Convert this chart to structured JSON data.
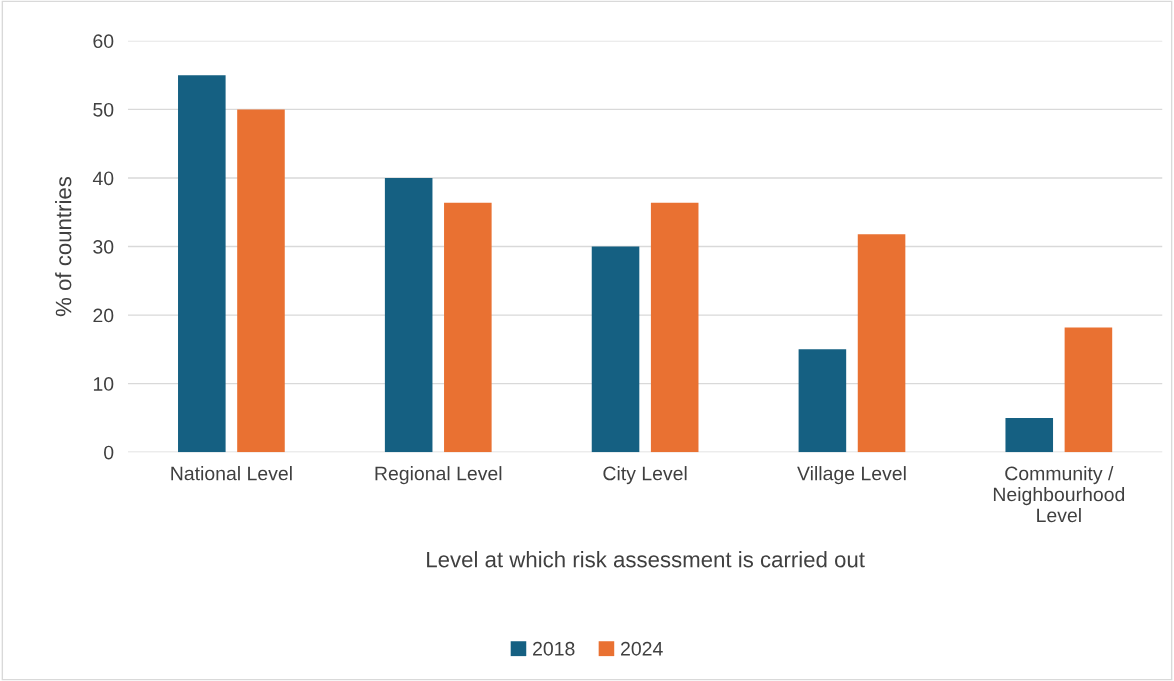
{
  "chart_data": {
    "type": "bar",
    "categories": [
      "National Level",
      "Regional Level",
      "City Level",
      "Village Level",
      "Community /\nNeighbourhood\nLevel"
    ],
    "series": [
      {
        "name": "2018",
        "color": "#156082",
        "values": [
          55,
          40,
          30,
          15,
          5
        ]
      },
      {
        "name": "2024",
        "color": "#e97132",
        "values": [
          50,
          36.4,
          36.4,
          31.8,
          18.2
        ]
      }
    ],
    "xlabel": "Level at which risk assessment is carried out",
    "ylabel": "% of countries",
    "ylim": [
      0,
      60
    ],
    "yticks": [
      0,
      10,
      20,
      30,
      40,
      50,
      60
    ],
    "grid": "y",
    "legend": "bottom"
  }
}
